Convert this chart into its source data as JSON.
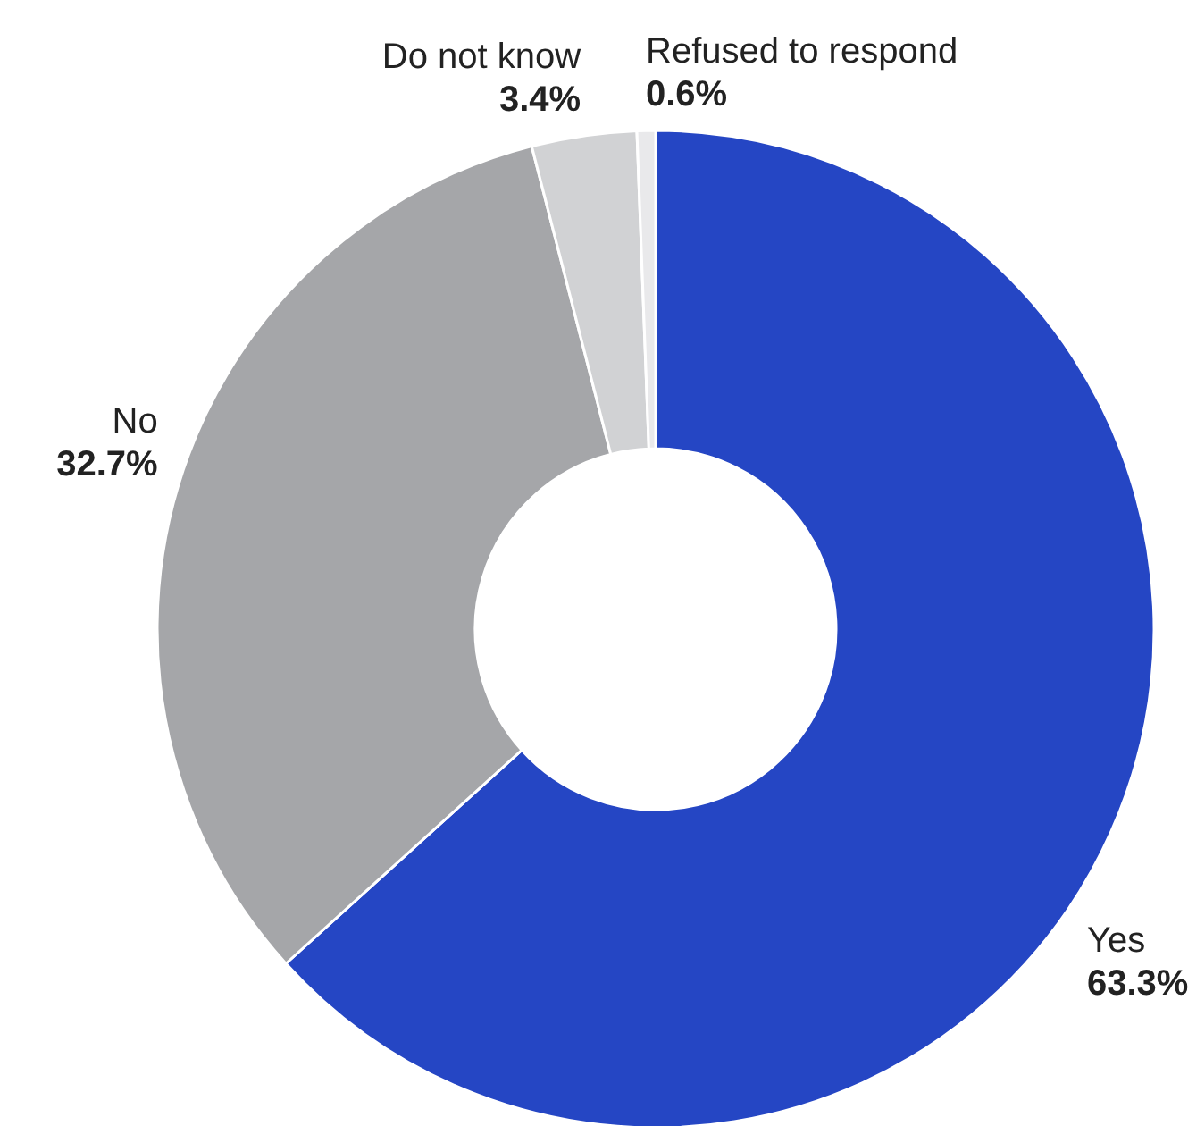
{
  "chart_data": {
    "type": "donut",
    "categories": [
      "Yes",
      "No",
      "Do not know",
      "Refused to respond"
    ],
    "values": [
      63.3,
      32.7,
      3.4,
      0.6
    ],
    "colors": [
      "#2546c4",
      "#a5a6a9",
      "#d1d2d4",
      "#e9e9eb"
    ],
    "value_labels": [
      "63.3%",
      "32.7%",
      "3.4%",
      "0.6%"
    ]
  }
}
